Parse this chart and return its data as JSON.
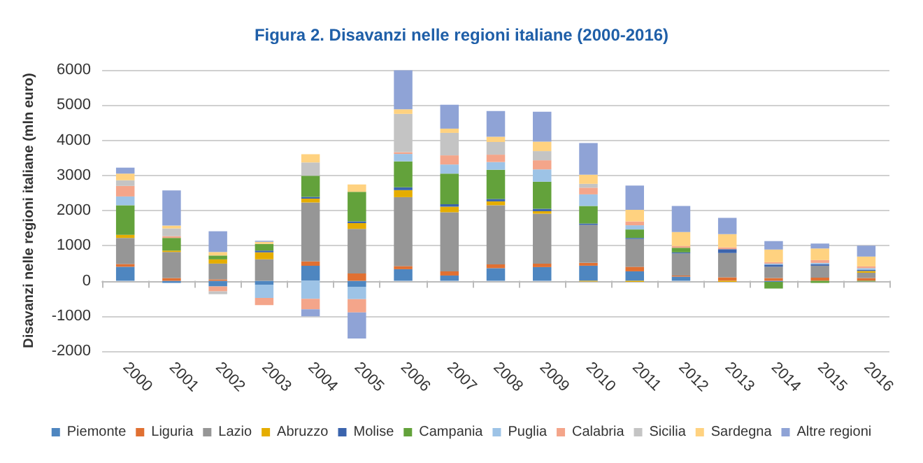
{
  "chart_data": {
    "type": "bar",
    "stacked": true,
    "title": "Figura 2. Disavanzi nelle regioni italiane (2000-2016)",
    "ylabel": "Disavanzi nelle regioni italiane (mln euro)",
    "categories": [
      "2000",
      "2001",
      "2002",
      "2003",
      "2004",
      "2005",
      "2006",
      "2007",
      "2008",
      "2009",
      "2010",
      "2011",
      "2012",
      "2013",
      "2014",
      "2015",
      "2016"
    ],
    "ylim": [
      -2000,
      6000
    ],
    "yticks": [
      -2000,
      -1000,
      0,
      1000,
      2000,
      3000,
      4000,
      5000,
      6000
    ],
    "grid": "y",
    "legend": "bottom",
    "series": [
      {
        "name": "Piemonte",
        "color": "#4e86c0",
        "values": [
          400,
          -60,
          -160,
          -110,
          430,
          -170,
          330,
          150,
          360,
          390,
          430,
          270,
          120,
          0,
          -30,
          0,
          0
        ]
      },
      {
        "name": "Liguria",
        "color": "#e07032",
        "values": [
          80,
          80,
          40,
          0,
          120,
          210,
          90,
          120,
          110,
          100,
          80,
          130,
          30,
          100,
          80,
          90,
          80
        ]
      },
      {
        "name": "Lazio",
        "color": "#969696",
        "values": [
          740,
          740,
          450,
          610,
          1680,
          1270,
          1960,
          1680,
          1680,
          1420,
          1080,
          790,
          630,
          690,
          320,
          340,
          150
        ]
      },
      {
        "name": "Abruzzo",
        "color": "#e5ad00",
        "values": [
          90,
          40,
          120,
          200,
          110,
          160,
          200,
          160,
          110,
          70,
          -20,
          -30,
          0,
          -30,
          0,
          0,
          50
        ]
      },
      {
        "name": "Molise",
        "color": "#3b64ad",
        "values": [
          0,
          0,
          0,
          50,
          50,
          50,
          80,
          70,
          70,
          70,
          40,
          30,
          30,
          110,
          60,
          40,
          30
        ]
      },
      {
        "name": "Campania",
        "color": "#63a23b",
        "values": [
          840,
          360,
          110,
          190,
          600,
          840,
          740,
          870,
          830,
          770,
          500,
          240,
          130,
          0,
          -190,
          -60,
          -20
        ]
      },
      {
        "name": "Puglia",
        "color": "#9dc3e6",
        "values": [
          250,
          0,
          0,
          -380,
          -510,
          -350,
          210,
          260,
          220,
          350,
          330,
          120,
          0,
          0,
          30,
          40,
          50
        ]
      },
      {
        "name": "Calabria",
        "color": "#f4a58a",
        "values": [
          300,
          50,
          -140,
          -200,
          -300,
          -380,
          50,
          260,
          210,
          260,
          190,
          110,
          50,
          50,
          40,
          80,
          50
        ]
      },
      {
        "name": "Sicilia",
        "color": "#c4c4c4",
        "values": [
          160,
          220,
          -80,
          null,
          380,
          null,
          1090,
          640,
          360,
          260,
          110,
          null,
          0,
          0,
          0,
          0,
          0
        ]
      },
      {
        "name": "Sardegna",
        "color": "#ffd280",
        "values": [
          190,
          80,
          100,
          60,
          230,
          210,
          130,
          120,
          150,
          270,
          260,
          330,
          400,
          380,
          360,
          330,
          280
        ]
      },
      {
        "name": "Altre regioni",
        "color": "#8fa3d6",
        "values": [
          170,
          1000,
          590,
          30,
          -200,
          -740,
          1110,
          680,
          730,
          850,
          900,
          690,
          740,
          460,
          240,
          140,
          310
        ]
      }
    ]
  }
}
